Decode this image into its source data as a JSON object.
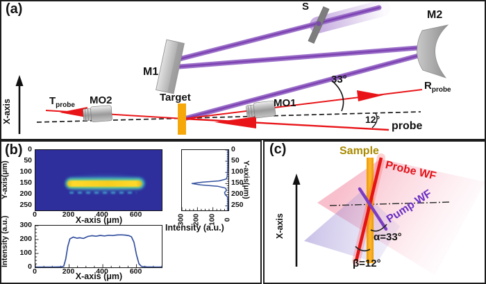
{
  "panel_a": {
    "label": "(a)",
    "x_axis_label": "X-axis",
    "mirror_1": "M1",
    "mirror_2": "M2",
    "splitter": "S",
    "objective_1": "MO1",
    "objective_2": "MO2",
    "target": "Target",
    "transmitted_probe": {
      "main": "T",
      "sub": "probe"
    },
    "reflected_probe": {
      "main": "R",
      "sub": "probe"
    },
    "probe": "probe",
    "pump_angle": "33°",
    "probe_angle": "12°"
  },
  "panel_b": {
    "label": "(b)"
  },
  "panel_c": {
    "label": "(c)",
    "x_axis_label": "X-axis",
    "sample": "Sample",
    "probe_wf": "Probe WF",
    "pump_wf": "Pump WF",
    "alpha": "α=33°",
    "beta": "β=12°"
  },
  "colors": {
    "pump_beam_purple": "#9668c6",
    "pump_beam_core": "#7a3fb0",
    "probe_red": "#e81418",
    "target_orange": "#f6a80b",
    "heatmap_background": "#2e2e9c",
    "streak_yellow": "#f8cd1d",
    "streak_cyan": "#35b8d8",
    "profile_curve_blue": "#33509e",
    "sample_label_gold": "#a98a00",
    "pump_wf_purple": "#6b2fc3",
    "probe_wf_red": "#e31219"
  },
  "chart_data": [
    {
      "type": "heatmap",
      "xlabel": "X-axis (μm)",
      "ylabel": "Y-axis(μm)",
      "x_range": [
        0,
        750
      ],
      "y_range": [
        0,
        270
      ],
      "xticks": [
        0,
        200,
        400,
        600
      ],
      "yticks": [
        0,
        50,
        100,
        150,
        200,
        250
      ],
      "colormap": "jet-like: dark blue background, yellow line focus with cyan-green rim",
      "feature": {
        "description": "bright horizontal line focus",
        "y_center_um": 150,
        "x_extent_um": [
          190,
          650
        ],
        "thickness_um": 25
      }
    },
    {
      "type": "line",
      "name": "horizontal lineout of line focus",
      "xlabel": "X-axis (μm)",
      "ylabel": "Intensity (a.u.)",
      "xlim": [
        0,
        750
      ],
      "ylim": [
        0,
        300
      ],
      "xticks": [
        0,
        200,
        400,
        600
      ],
      "yticks": [
        0,
        100,
        200,
        300
      ],
      "x": [
        0,
        100,
        150,
        168,
        180,
        192,
        205,
        225,
        245,
        265,
        285,
        310,
        335,
        360,
        385,
        410,
        435,
        460,
        485,
        510,
        535,
        555,
        570,
        585,
        600,
        615,
        630,
        660,
        700,
        750
      ],
      "y": [
        2,
        2,
        3,
        8,
        60,
        150,
        205,
        218,
        210,
        213,
        208,
        222,
        228,
        224,
        230,
        226,
        231,
        229,
        233,
        234,
        232,
        228,
        220,
        180,
        90,
        25,
        6,
        3,
        2,
        2
      ]
    },
    {
      "type": "line",
      "name": "vertical lineout of line focus",
      "xlabel": "Intensity (a.u.)",
      "ylabel": "Y-axis(μm)",
      "intensity_lim": [
        0,
        300
      ],
      "y_lim": [
        0,
        270
      ],
      "xticks": [
        300,
        200,
        100,
        0
      ],
      "yticks": [
        0,
        50,
        100,
        150,
        200,
        250
      ],
      "note": "intensity axis increases leftward; peak at y = 150 μm",
      "y_um": [
        0,
        60,
        100,
        120,
        130,
        138,
        144,
        150,
        156,
        162,
        170,
        180,
        190,
        200,
        210,
        230,
        270
      ],
      "intensity": [
        4,
        4,
        6,
        8,
        15,
        60,
        170,
        235,
        180,
        70,
        20,
        12,
        25,
        20,
        6,
        4,
        4
      ]
    }
  ]
}
